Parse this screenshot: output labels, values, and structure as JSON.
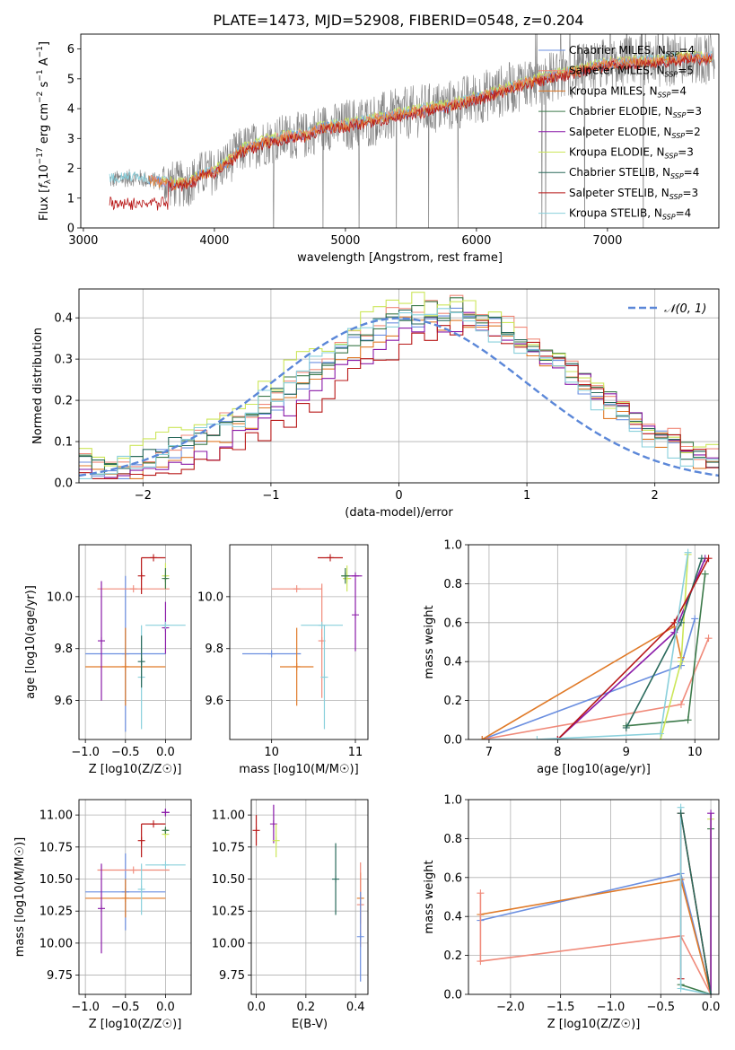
{
  "figure_title": "PLATE=1473, MJD=52908, FIBERID=0548, z=0.204",
  "colors": {
    "Chabrier MILES": "#6b8fe0",
    "Salpeter MILES": "#f08a7a",
    "Kroupa MILES": "#e07a28",
    "Chabrier ELODIE": "#3c7a4a",
    "Salpeter ELODIE": "#8a1aa8",
    "Kroupa ELODIE": "#cce65a",
    "Chabrier STELIB": "#2a6a5c",
    "Salpeter STELIB": "#b81818",
    "Kroupa STELIB": "#8ad0dc",
    "data": "#808080",
    "normal": "#5b87d8"
  },
  "chart_data": [
    {
      "id": "spectrum",
      "type": "line",
      "title": "PLATE=1473, MJD=52908, FIBERID=0548, z=0.204",
      "xlabel": "wavelength [Angstrom, rest frame]",
      "ylabel": "Flux [f_λ 10^-17 erg cm^-2 s^-1 A^-1]",
      "xlim": [
        2980,
        7850
      ],
      "ylim": [
        0,
        6.5
      ],
      "xticks": [
        3000,
        4000,
        5000,
        6000,
        7000
      ],
      "yticks": [
        0,
        1,
        2,
        3,
        4,
        5,
        6
      ],
      "legend_placement": "top-right",
      "legend": [
        {
          "prefix": "Chabrier MILES, N",
          "sub": "SSP",
          "suffix": "=4",
          "series": "Chabrier MILES"
        },
        {
          "prefix": "Salpeter MILES, N",
          "sub": "SSP",
          "suffix": "=5",
          "series": "Salpeter MILES"
        },
        {
          "prefix": "Kroupa MILES, N",
          "sub": "SSP",
          "suffix": "=4",
          "series": "Kroupa MILES"
        },
        {
          "prefix": "Chabrier ELODIE, N",
          "sub": "SSP",
          "suffix": "=3",
          "series": "Chabrier ELODIE"
        },
        {
          "prefix": "Salpeter ELODIE, N",
          "sub": "SSP",
          "suffix": "=2",
          "series": "Salpeter ELODIE"
        },
        {
          "prefix": "Kroupa ELODIE, N",
          "sub": "SSP",
          "suffix": "=3",
          "series": "Kroupa ELODIE"
        },
        {
          "prefix": "Chabrier STELIB, N",
          "sub": "SSP",
          "suffix": "=4",
          "series": "Chabrier STELIB"
        },
        {
          "prefix": "Salpeter STELIB, N",
          "sub": "SSP",
          "suffix": "=3",
          "series": "Salpeter STELIB"
        },
        {
          "prefix": "Kroupa STELIB, N",
          "sub": "SSP",
          "suffix": "=4",
          "series": "Kroupa STELIB"
        }
      ],
      "model_continuum": {
        "x": [
          3200,
          3300,
          3400,
          3500,
          3600,
          3700,
          3800,
          3900,
          4000,
          4100,
          4200,
          4300,
          4400,
          4500,
          4600,
          4700,
          4800,
          4900,
          5000,
          5200,
          5400,
          5600,
          5800,
          6000,
          6200,
          6400,
          6600,
          6800,
          7000,
          7200,
          7400,
          7600
        ],
        "y": [
          1.6,
          1.65,
          1.7,
          1.6,
          1.55,
          1.45,
          1.5,
          1.8,
          1.9,
          2.2,
          2.6,
          2.75,
          2.9,
          3.0,
          3.1,
          3.1,
          3.35,
          3.4,
          3.45,
          3.6,
          3.8,
          3.95,
          4.1,
          4.35,
          4.6,
          4.9,
          5.1,
          5.3,
          5.5,
          5.55,
          5.6,
          5.7
        ]
      }
    },
    {
      "id": "residuals",
      "type": "histogram",
      "xlabel": "(data-model)/error",
      "ylabel": "Normed distribution",
      "xlim": [
        -2.5,
        2.5
      ],
      "ylim": [
        0,
        0.47
      ],
      "xticks": [
        -2,
        -1,
        0,
        1,
        2
      ],
      "yticks": [
        0.0,
        0.1,
        0.2,
        0.3,
        0.4
      ],
      "legend_placement": "top-right",
      "legend_label": "𝒩(0, 1)",
      "bin_width": 0.1,
      "bin_start": -2.5,
      "reference_series": "Chabrier MILES",
      "reference_values": [
        0.03,
        0.03,
        0.03,
        0.03,
        0.04,
        0.05,
        0.06,
        0.08,
        0.09,
        0.1,
        0.11,
        0.13,
        0.14,
        0.16,
        0.18,
        0.2,
        0.22,
        0.25,
        0.27,
        0.29,
        0.31,
        0.33,
        0.35,
        0.37,
        0.38,
        0.39,
        0.4,
        0.41,
        0.4,
        0.41,
        0.4,
        0.39,
        0.38,
        0.36,
        0.34,
        0.32,
        0.3,
        0.28,
        0.26,
        0.24,
        0.22,
        0.19,
        0.17,
        0.15,
        0.13,
        0.11,
        0.09,
        0.07,
        0.06,
        0.04
      ]
    },
    {
      "id": "age_vs_Z",
      "type": "scatter",
      "xlabel": "Z [log10(Z/Z☉)]",
      "ylabel": "age  [log10(age/yr)]",
      "xlim": [
        -1.08,
        0.32
      ],
      "ylim": [
        9.45,
        10.2
      ],
      "xticks": [
        -1.0,
        -0.5,
        0.0
      ],
      "yticks": [
        9.6,
        9.8,
        10.0
      ],
      "points": [
        {
          "series": "Chabrier MILES",
          "x": -0.5,
          "xerr": 0.5,
          "y": 9.78,
          "yerr": 0.3
        },
        {
          "series": "Kroupa MILES",
          "x": -0.5,
          "xerr": 0.5,
          "y": 9.73,
          "yerr": 0.15
        },
        {
          "series": "Salpeter MILES",
          "x": -0.4,
          "xerr": 0.45,
          "y": 10.03,
          "yerr": 0.0
        },
        {
          "series": "Salpeter ELODIE",
          "x": -0.8,
          "xerr": 0.0,
          "y": 9.83,
          "yerr": 0.23
        },
        {
          "series": "Kroupa ELODIE",
          "x": 0.0,
          "xerr": 0.02,
          "y": 10.08,
          "yerr": 0.05
        },
        {
          "series": "Salpeter ELODIE",
          "x": 0.0,
          "xerr": 0.02,
          "y": 9.88,
          "yerr": 0.1
        },
        {
          "series": "Chabrier ELODIE",
          "x": 0.0,
          "xerr": 0.02,
          "y": 10.07,
          "yerr": 0.04
        },
        {
          "series": "Salpeter STELIB",
          "x": -0.15,
          "xerr": 0.15,
          "y": 10.15,
          "yerr": 0.0
        },
        {
          "series": "Salpeter STELIB",
          "x": -0.3,
          "xerr": 0.0,
          "y": 10.08,
          "yerr": 0.07
        },
        {
          "series": "Kroupa STELIB",
          "x": 0.0,
          "xerr": 0.25,
          "y": 9.89,
          "yerr": 0.0
        },
        {
          "series": "Kroupa STELIB",
          "x": -0.3,
          "xerr": 0.0,
          "y": 9.69,
          "yerr": 0.2
        },
        {
          "series": "Chabrier STELIB",
          "x": -0.3,
          "xerr": 0.0,
          "y": 9.75,
          "yerr": 0.1
        }
      ]
    },
    {
      "id": "age_vs_mass",
      "type": "scatter",
      "xlabel": "mass [log10(M/M☉)]",
      "ylabel": "",
      "xlim": [
        9.5,
        11.15
      ],
      "ylim": [
        9.45,
        10.2
      ],
      "xticks": [
        10,
        11
      ],
      "yticks": [
        9.6,
        9.8,
        10.0
      ],
      "points": [
        {
          "series": "Chabrier MILES",
          "x": 10.0,
          "xerr": 0.35,
          "y": 9.78,
          "yerr": 0.0
        },
        {
          "series": "Kroupa MILES",
          "x": 10.3,
          "xerr": 0.2,
          "y": 9.73,
          "yerr": 0.15
        },
        {
          "series": "Salpeter MILES",
          "x": 10.3,
          "xerr": 0.3,
          "y": 10.03,
          "yerr": 0.0
        },
        {
          "series": "Salpeter MILES",
          "x": 10.6,
          "xerr": 0.0,
          "y": 9.83,
          "yerr": 0.22
        },
        {
          "series": "Kroupa STELIB",
          "x": 10.6,
          "xerr": 0.25,
          "y": 9.89,
          "yerr": 0.0
        },
        {
          "series": "Kroupa STELIB",
          "x": 10.63,
          "xerr": 0.0,
          "y": 9.69,
          "yerr": 0.2
        },
        {
          "series": "Salpeter STELIB",
          "x": 10.7,
          "xerr": 0.15,
          "y": 10.15,
          "yerr": 0.0
        },
        {
          "series": "Kroupa ELODIE",
          "x": 10.9,
          "xerr": 0.05,
          "y": 10.07,
          "yerr": 0.05
        },
        {
          "series": "Salpeter ELODIE",
          "x": 11.0,
          "xerr": 0.08,
          "y": 10.08,
          "yerr": 0.0
        },
        {
          "series": "Salpeter ELODIE",
          "x": 11.0,
          "xerr": 0.0,
          "y": 9.93,
          "yerr": 0.14
        },
        {
          "series": "Chabrier ELODIE",
          "x": 10.88,
          "xerr": 0.05,
          "y": 10.08,
          "yerr": 0.03
        }
      ]
    },
    {
      "id": "weight_vs_age",
      "type": "line",
      "xlabel": "age  [log10(age/yr)]",
      "ylabel": "mass weight",
      "xlim": [
        6.7,
        10.35
      ],
      "ylim": [
        0,
        1.0
      ],
      "xticks": [
        7,
        8,
        9,
        10
      ],
      "yticks": [
        0.0,
        0.2,
        0.4,
        0.6,
        0.8,
        1.0
      ],
      "series": [
        {
          "name": "Chabrier MILES",
          "x": [
            6.9,
            9.8,
            10.0
          ],
          "y": [
            0.0,
            0.38,
            0.62
          ]
        },
        {
          "name": "Salpeter MILES",
          "x": [
            6.9,
            9.8,
            10.2
          ],
          "y": [
            0.0,
            0.18,
            0.52
          ]
        },
        {
          "name": "Kroupa MILES",
          "x": [
            6.9,
            9.7,
            9.8
          ],
          "y": [
            0.0,
            0.58,
            0.42
          ]
        },
        {
          "name": "Chabrier ELODIE",
          "x": [
            9.0,
            9.9,
            10.15
          ],
          "y": [
            0.07,
            0.1,
            0.85
          ]
        },
        {
          "name": "Salpeter ELODIE",
          "x": [
            8.0,
            9.7,
            10.15
          ],
          "y": [
            0.0,
            0.55,
            0.93
          ]
        },
        {
          "name": "Kroupa ELODIE",
          "x": [
            9.5,
            9.8,
            9.9
          ],
          "y": [
            0.0,
            0.4,
            0.95
          ]
        },
        {
          "name": "Chabrier STELIB",
          "x": [
            9.0,
            9.8,
            10.1
          ],
          "y": [
            0.06,
            0.6,
            0.93
          ]
        },
        {
          "name": "Salpeter STELIB",
          "x": [
            8.0,
            9.7,
            10.2
          ],
          "y": [
            0.0,
            0.6,
            0.93
          ]
        },
        {
          "name": "Kroupa STELIB",
          "x": [
            7.7,
            9.5,
            9.9
          ],
          "y": [
            0.0,
            0.03,
            0.96
          ]
        }
      ]
    },
    {
      "id": "mass_vs_Z",
      "type": "scatter",
      "xlabel": "Z [log10(Z/Z☉)]",
      "ylabel": "mass [log10(M/M☉)]",
      "xlim": [
        -1.08,
        0.32
      ],
      "ylim": [
        9.6,
        11.12
      ],
      "xticks": [
        -1.0,
        -0.5,
        0.0
      ],
      "yticks": [
        9.75,
        10.0,
        10.25,
        10.5,
        10.75,
        11.0
      ],
      "points": [
        {
          "series": "Chabrier MILES",
          "x": -0.5,
          "xerr": 0.5,
          "y": 10.4,
          "yerr": 0.3
        },
        {
          "series": "Kroupa MILES",
          "x": -0.5,
          "xerr": 0.5,
          "y": 10.35,
          "yerr": 0.15
        },
        {
          "series": "Salpeter MILES",
          "x": -0.4,
          "xerr": 0.45,
          "y": 10.57,
          "yerr": 0.0
        },
        {
          "series": "Salpeter ELODIE",
          "x": -0.8,
          "xerr": 0.0,
          "y": 10.27,
          "yerr": 0.35
        },
        {
          "series": "Salpeter STELIB",
          "x": -0.15,
          "xerr": 0.15,
          "y": 10.93,
          "yerr": 0.0
        },
        {
          "series": "Salpeter STELIB",
          "x": -0.3,
          "xerr": 0.0,
          "y": 10.8,
          "yerr": 0.13
        },
        {
          "series": "Kroupa STELIB",
          "x": 0.0,
          "xerr": 0.25,
          "y": 10.61,
          "yerr": 0.0
        },
        {
          "series": "Kroupa STELIB",
          "x": -0.3,
          "xerr": 0.0,
          "y": 10.42,
          "yerr": 0.2
        },
        {
          "series": "Salpeter ELODIE",
          "x": 0.0,
          "xerr": 0.05,
          "y": 11.02,
          "yerr": 0.03
        },
        {
          "series": "Kroupa ELODIE",
          "x": 0.0,
          "xerr": 0.03,
          "y": 10.85,
          "yerr": 0.03
        },
        {
          "series": "Chabrier ELODIE",
          "x": 0.0,
          "xerr": 0.03,
          "y": 10.88,
          "yerr": 0.02
        }
      ]
    },
    {
      "id": "mass_vs_ebv",
      "type": "scatter",
      "xlabel": "E(B-V)",
      "ylabel": "",
      "xlim": [
        -0.02,
        0.45
      ],
      "ylim": [
        9.6,
        11.12
      ],
      "xticks": [
        0.0,
        0.2,
        0.4
      ],
      "yticks": [
        9.75,
        10.0,
        10.25,
        10.5,
        10.75,
        11.0
      ],
      "points": [
        {
          "series": "Salpeter STELIB",
          "x": 0.0,
          "yerr": 0.12,
          "y": 10.88
        },
        {
          "series": "Salpeter ELODIE",
          "x": 0.07,
          "yerr": 0.15,
          "y": 10.93
        },
        {
          "series": "Kroupa ELODIE",
          "x": 0.08,
          "yerr": 0.13,
          "y": 10.8
        },
        {
          "series": "Chabrier STELIB",
          "x": 0.32,
          "yerr": 0.28,
          "y": 10.5
        },
        {
          "series": "Kroupa MILES",
          "x": 0.42,
          "yerr": 0.2,
          "y": 10.35
        },
        {
          "series": "Salpeter MILES",
          "x": 0.42,
          "yerr": 0.33,
          "y": 10.3
        },
        {
          "series": "Chabrier MILES",
          "x": 0.42,
          "yerr": 0.35,
          "y": 10.05
        }
      ]
    },
    {
      "id": "weight_vs_Z",
      "type": "line",
      "xlabel": "Z [log10(Z/Z☉)]",
      "ylabel": "mass weight",
      "xlim": [
        -2.42,
        0.08
      ],
      "ylim": [
        0,
        1.0
      ],
      "xticks": [
        -2.0,
        -1.5,
        -1.0,
        -0.5,
        0.0
      ],
      "yticks": [
        0.0,
        0.2,
        0.4,
        0.6,
        0.8,
        1.0
      ],
      "series": [
        {
          "name": "Chabrier MILES",
          "x": [
            -2.3,
            -0.3,
            0.0
          ],
          "y": [
            0.38,
            0.62,
            0.0
          ]
        },
        {
          "name": "Kroupa MILES",
          "x": [
            -2.3,
            -0.3,
            0.0
          ],
          "y": [
            0.41,
            0.59,
            0.0
          ]
        },
        {
          "name": "Salpeter MILES",
          "x": [
            -2.3,
            -2.3,
            -0.3,
            0.0
          ],
          "y": [
            0.52,
            0.17,
            0.3,
            0.0
          ]
        },
        {
          "name": "Salpeter STELIB",
          "x": [
            -0.3,
            -0.3,
            0.0
          ],
          "y": [
            0.08,
            0.93,
            0.0
          ]
        },
        {
          "name": "Chabrier ELODIE",
          "x": [
            -0.3,
            0.0,
            0.0
          ],
          "y": [
            0.05,
            0.0,
            0.85
          ]
        },
        {
          "name": "Kroupa ELODIE",
          "x": [
            0.0,
            0.0
          ],
          "y": [
            0.0,
            0.9
          ]
        },
        {
          "name": "Salpeter ELODIE",
          "x": [
            0.0,
            0.0
          ],
          "y": [
            0.0,
            0.93
          ]
        },
        {
          "name": "Kroupa STELIB",
          "x": [
            -0.3,
            -0.3,
            0.0
          ],
          "y": [
            0.96,
            0.03,
            0.0
          ]
        },
        {
          "name": "Chabrier STELIB",
          "x": [
            -0.3,
            0.0
          ],
          "y": [
            0.93,
            0.0
          ]
        }
      ]
    }
  ]
}
